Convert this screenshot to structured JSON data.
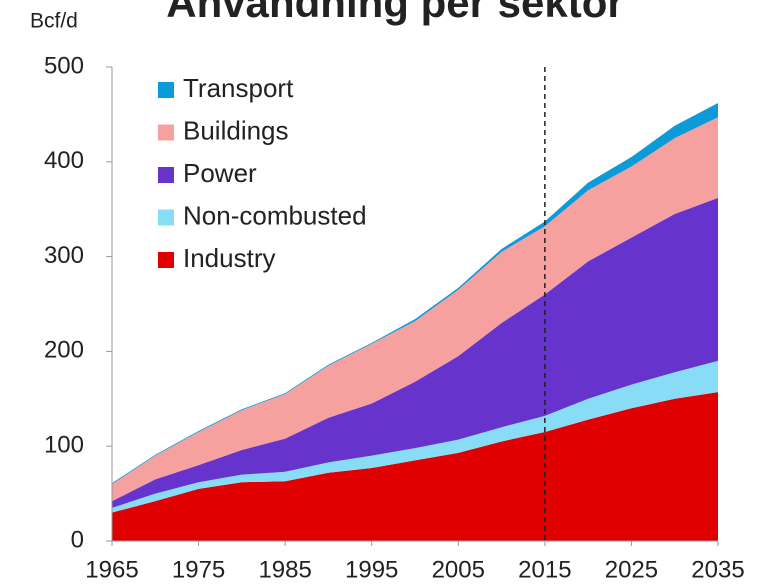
{
  "chart_data": {
    "type": "stacked_area",
    "title": "Användning per sektor",
    "y_axis_label": "Bcf/d",
    "x": [
      1965,
      1970,
      1975,
      1980,
      1985,
      1990,
      1995,
      2000,
      2005,
      2010,
      2015,
      2020,
      2025,
      2030,
      2035
    ],
    "series": [
      {
        "name": "Industry",
        "color": "#e00000",
        "values": [
          30,
          42,
          55,
          62,
          63,
          72,
          77,
          85,
          93,
          105,
          115,
          128,
          140,
          150,
          157
        ]
      },
      {
        "name": "Non-combusted",
        "color": "#88dcf6",
        "values": [
          5,
          8,
          7,
          8,
          10,
          11,
          13,
          13,
          14,
          15,
          17,
          22,
          25,
          28,
          33
        ]
      },
      {
        "name": "Power",
        "color": "#6633cc",
        "values": [
          7,
          15,
          18,
          26,
          35,
          47,
          55,
          70,
          88,
          110,
          128,
          145,
          155,
          167,
          172
        ]
      },
      {
        "name": "Buildings",
        "color": "#f6a0a0",
        "values": [
          18,
          25,
          35,
          42,
          47,
          55,
          63,
          64,
          70,
          75,
          72,
          75,
          75,
          80,
          85
        ]
      },
      {
        "name": "Transport",
        "color": "#0c9ad8",
        "values": [
          1,
          1,
          1,
          1,
          1,
          1,
          1,
          2,
          2,
          3,
          5,
          8,
          10,
          13,
          15
        ]
      }
    ],
    "xlim": [
      1965,
      2035
    ],
    "xticks": [
      1965,
      1975,
      1985,
      1995,
      2005,
      2015,
      2025,
      2035
    ],
    "ylim": [
      0,
      500
    ],
    "yticks": [
      0,
      100,
      200,
      300,
      400,
      500
    ],
    "reference_x": 2015,
    "legend": "upper left"
  }
}
